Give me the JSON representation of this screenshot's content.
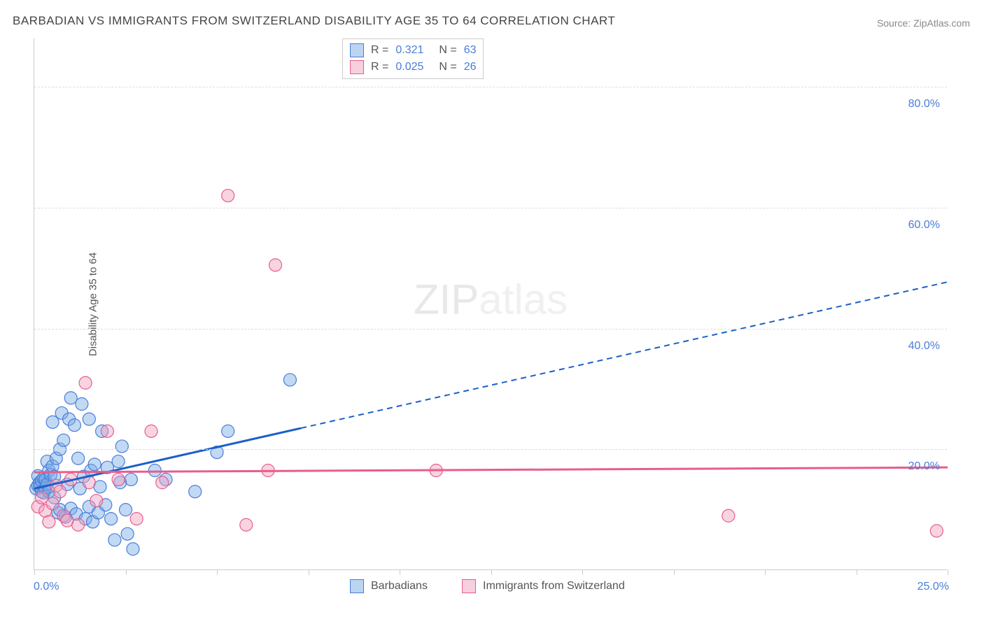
{
  "title": "BARBADIAN VS IMMIGRANTS FROM SWITZERLAND DISABILITY AGE 35 TO 64 CORRELATION CHART",
  "source": "Source: ZipAtlas.com",
  "y_axis_label": "Disability Age 35 to 64",
  "watermark_a": "ZIP",
  "watermark_b": "atlas",
  "chart": {
    "type": "scatter",
    "xlim": [
      0,
      25
    ],
    "ylim": [
      0,
      88
    ],
    "x_ticks": [
      0,
      2.5,
      5,
      7.5,
      10,
      12.5,
      15,
      17.5,
      20,
      22.5,
      25
    ],
    "x_tick_labels": {
      "0": "0.0%",
      "25": "25.0%"
    },
    "y_gridlines": [
      20,
      40,
      60,
      80
    ],
    "y_tick_labels": {
      "20": "20.0%",
      "40": "40.0%",
      "60": "60.0%",
      "80": "80.0%"
    },
    "background_color": "#ffffff",
    "grid_color": "#dddddd",
    "axis_color": "#cccccc",
    "label_color": "#4a7dd8",
    "marker_radius": 9,
    "series": [
      {
        "name": "Barbadians",
        "color_fill": "rgba(120,170,230,0.45)",
        "color_stroke": "#4a7dd8",
        "R": "0.321",
        "N": "63",
        "trend": {
          "x1": 0,
          "y1": 13.5,
          "x2_solid": 7.3,
          "y2_solid": 23.5,
          "x2": 25,
          "y2": 47.7,
          "dash_after_x": 7.3
        },
        "points": [
          [
            0.05,
            13.5
          ],
          [
            0.1,
            15.6
          ],
          [
            0.1,
            14.0
          ],
          [
            0.15,
            14.5
          ],
          [
            0.15,
            13.8
          ],
          [
            0.2,
            13.0
          ],
          [
            0.2,
            14.8
          ],
          [
            0.25,
            15.2
          ],
          [
            0.25,
            12.8
          ],
          [
            0.3,
            15.0
          ],
          [
            0.3,
            13.6
          ],
          [
            0.35,
            18.0
          ],
          [
            0.35,
            14.2
          ],
          [
            0.4,
            16.5
          ],
          [
            0.4,
            13.0
          ],
          [
            0.45,
            15.8
          ],
          [
            0.5,
            24.5
          ],
          [
            0.5,
            17.2
          ],
          [
            0.55,
            15.5
          ],
          [
            0.55,
            12.0
          ],
          [
            0.6,
            18.5
          ],
          [
            0.65,
            9.5
          ],
          [
            0.7,
            10.0
          ],
          [
            0.7,
            20.0
          ],
          [
            0.75,
            26.0
          ],
          [
            0.8,
            21.5
          ],
          [
            0.85,
            8.8
          ],
          [
            0.9,
            14.2
          ],
          [
            0.95,
            25.0
          ],
          [
            1.0,
            28.5
          ],
          [
            1.0,
            10.2
          ],
          [
            1.1,
            24.0
          ],
          [
            1.15,
            9.3
          ],
          [
            1.2,
            18.5
          ],
          [
            1.25,
            13.5
          ],
          [
            1.3,
            27.5
          ],
          [
            1.35,
            15.5
          ],
          [
            1.4,
            8.5
          ],
          [
            1.5,
            25.0
          ],
          [
            1.5,
            10.5
          ],
          [
            1.55,
            16.5
          ],
          [
            1.6,
            8.0
          ],
          [
            1.65,
            17.5
          ],
          [
            1.75,
            9.5
          ],
          [
            1.8,
            13.8
          ],
          [
            1.85,
            23.0
          ],
          [
            1.95,
            10.8
          ],
          [
            2.0,
            17.0
          ],
          [
            2.1,
            8.5
          ],
          [
            2.2,
            5.0
          ],
          [
            2.3,
            18.0
          ],
          [
            2.35,
            14.5
          ],
          [
            2.4,
            20.5
          ],
          [
            2.5,
            10.0
          ],
          [
            2.55,
            6.0
          ],
          [
            2.65,
            15.0
          ],
          [
            2.7,
            3.5
          ],
          [
            3.3,
            16.5
          ],
          [
            3.6,
            15.0
          ],
          [
            4.4,
            13.0
          ],
          [
            5.0,
            19.5
          ],
          [
            5.3,
            23.0
          ],
          [
            7.0,
            31.5
          ]
        ]
      },
      {
        "name": "Immigrants from Switzerland",
        "color_fill": "rgba(240,160,190,0.45)",
        "color_stroke": "#e85d8c",
        "R": "0.025",
        "N": "26",
        "trend": {
          "x1": 0,
          "y1": 16.2,
          "x2": 25,
          "y2": 17.0
        },
        "points": [
          [
            0.1,
            10.5
          ],
          [
            0.2,
            12.0
          ],
          [
            0.3,
            9.8
          ],
          [
            0.4,
            8.0
          ],
          [
            0.5,
            11.0
          ],
          [
            0.6,
            14.0
          ],
          [
            0.7,
            13.0
          ],
          [
            0.8,
            9.0
          ],
          [
            0.9,
            8.2
          ],
          [
            1.0,
            15.0
          ],
          [
            1.2,
            7.5
          ],
          [
            1.4,
            31.0
          ],
          [
            1.5,
            14.5
          ],
          [
            1.7,
            11.5
          ],
          [
            2.0,
            23.0
          ],
          [
            2.3,
            15.0
          ],
          [
            2.8,
            8.5
          ],
          [
            3.2,
            23.0
          ],
          [
            3.5,
            14.5
          ],
          [
            5.3,
            62.0
          ],
          [
            5.8,
            7.5
          ],
          [
            6.4,
            16.5
          ],
          [
            6.6,
            50.5
          ],
          [
            11.0,
            16.5
          ],
          [
            19.0,
            9.0
          ],
          [
            24.7,
            6.5
          ]
        ]
      }
    ]
  },
  "legend_top": {
    "rows": [
      {
        "swatch": "blue",
        "r_label": "R =",
        "r_val": "0.321",
        "n_label": "N =",
        "n_val": "63"
      },
      {
        "swatch": "pink",
        "r_label": "R =",
        "r_val": "0.025",
        "n_label": "N =",
        "n_val": "26"
      }
    ]
  },
  "legend_bottom": [
    {
      "swatch": "blue",
      "label": "Barbadians"
    },
    {
      "swatch": "pink",
      "label": "Immigrants from Switzerland"
    }
  ]
}
